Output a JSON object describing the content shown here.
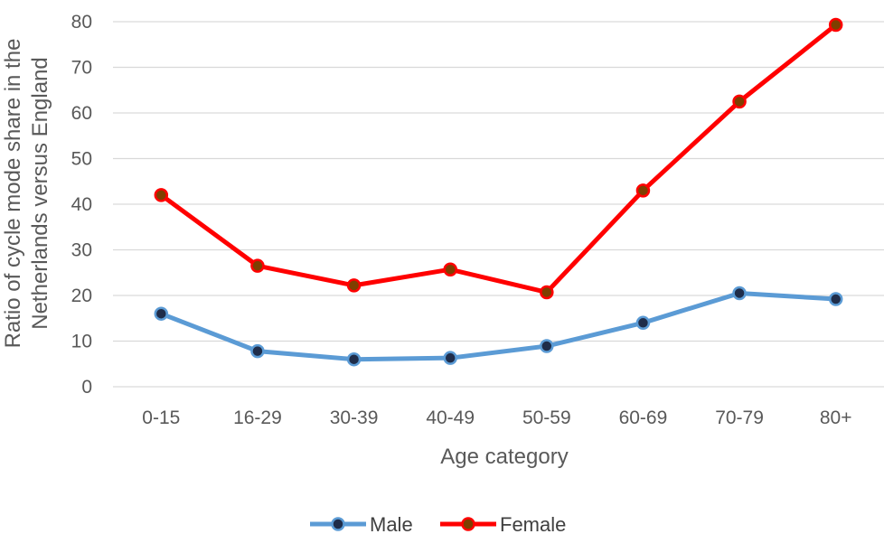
{
  "chart_data": {
    "type": "line",
    "categories": [
      "0-15",
      "16-29",
      "30-39",
      "40-49",
      "50-59",
      "60-69",
      "70-79",
      "80+"
    ],
    "series": [
      {
        "name": "Male",
        "values": [
          16,
          7.8,
          6,
          6.3,
          8.9,
          14,
          20.5,
          19.2
        ],
        "color": "#5b9bd5",
        "marker_color": "#1f2d4a"
      },
      {
        "name": "Female",
        "values": [
          42,
          26.5,
          22.2,
          25.7,
          20.7,
          43,
          62.5,
          79.3
        ],
        "color": "#ff0000",
        "marker_color": "#7f3f00"
      }
    ],
    "xlabel": "Age category",
    "ylabel": [
      "Ratio of cycle mode share in the",
      "Netherlands versus England"
    ],
    "ylim": [
      0,
      80
    ],
    "yticks": [
      "0",
      "10",
      "20",
      "30",
      "40",
      "50",
      "60",
      "70",
      "80"
    ],
    "grid": true,
    "legend_position": "bottom"
  }
}
